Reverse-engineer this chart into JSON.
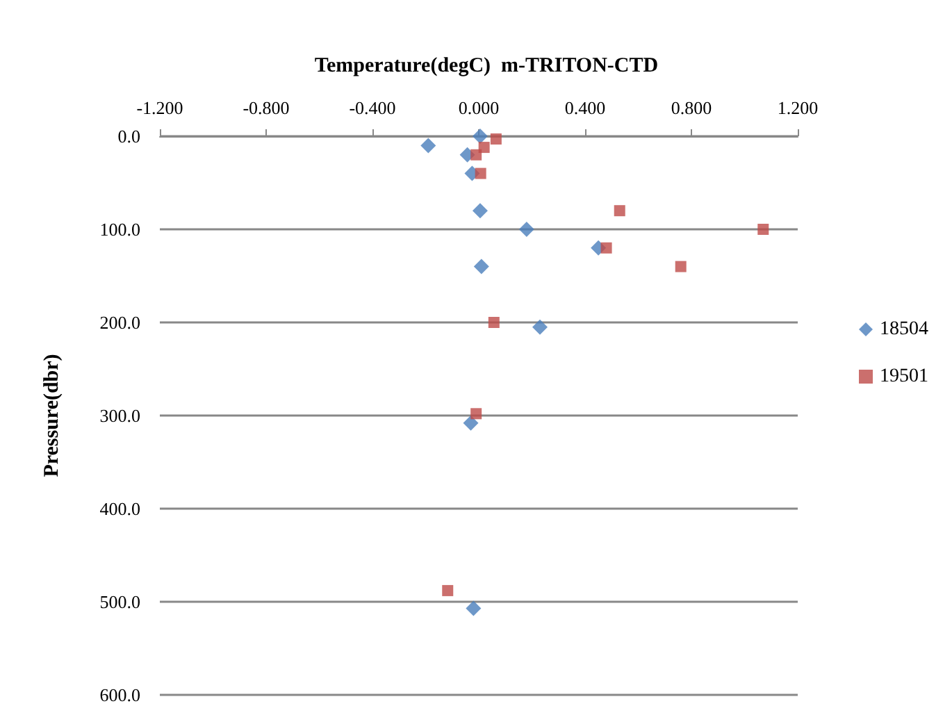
{
  "chart_data": {
    "type": "scatter",
    "title": "Temperature(degC)  m-TRITON-CTD",
    "ylabel": "Pressure(dbr)",
    "series": [
      {
        "name": "18504",
        "color": "#4a7ebb",
        "marker": "diamond",
        "x": [
          0.005,
          -0.19,
          -0.043,
          -0.025,
          0.005,
          0.18,
          0.45,
          0.01,
          0.23,
          -0.03,
          -0.02
        ],
        "values": [
          0,
          10,
          20,
          40,
          80,
          100,
          120,
          140,
          205,
          308,
          507
        ]
      },
      {
        "name": "19501",
        "color": "#be4b48",
        "marker": "square",
        "x": [
          0.065,
          0.02,
          -0.01,
          0.007,
          0.53,
          1.07,
          0.48,
          0.76,
          0.057,
          -0.01,
          -0.117
        ],
        "values": [
          3,
          12,
          20,
          40,
          80,
          100,
          120,
          140,
          200,
          298,
          488
        ]
      }
    ],
    "xlim": [
      -1.2,
      1.2
    ],
    "xticks": [
      {
        "value": -1.2,
        "label": "-1.200"
      },
      {
        "value": -0.8,
        "label": "-0.800"
      },
      {
        "value": -0.4,
        "label": "-0.400"
      },
      {
        "value": 0,
        "label": "0.000"
      },
      {
        "value": 0.4,
        "label": "0.400"
      },
      {
        "value": 0.8,
        "label": "0.800"
      },
      {
        "value": 1.2,
        "label": "1.200"
      }
    ],
    "ylim": [
      600,
      0
    ],
    "yticks": [
      {
        "value": 0,
        "label": "0.0"
      },
      {
        "value": 100,
        "label": "100.0"
      },
      {
        "value": 200,
        "label": "200.0"
      },
      {
        "value": 300,
        "label": "300.0"
      },
      {
        "value": 400,
        "label": "400.0"
      },
      {
        "value": 500,
        "label": "500.0"
      },
      {
        "value": 600,
        "label": "600.0"
      }
    ],
    "grid": "y",
    "legend": "right"
  }
}
